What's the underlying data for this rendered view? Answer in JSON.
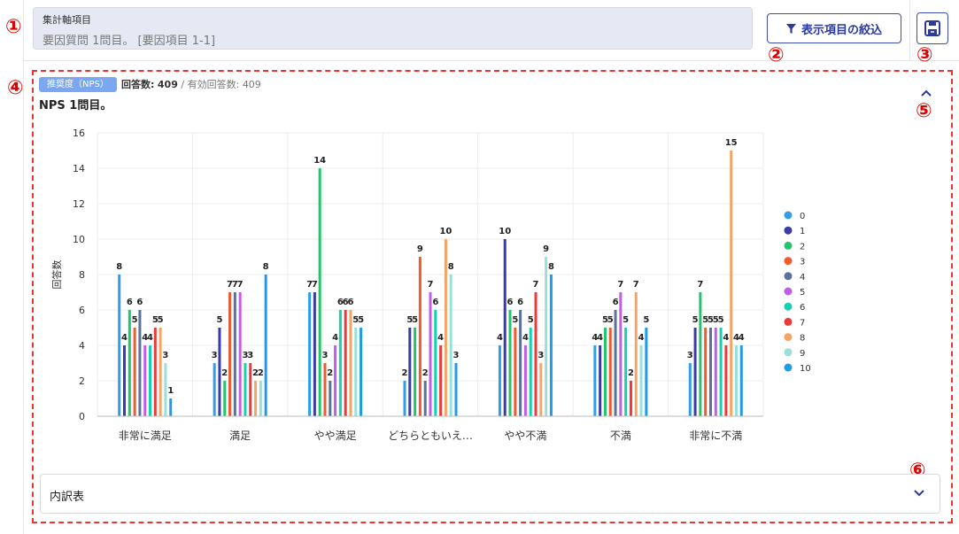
{
  "markers": [
    "①",
    "②",
    "③",
    "④",
    "⑤",
    "⑥"
  ],
  "axis_setting": {
    "label": "集計軸項目",
    "value": "要因質問 1問目。 [要因項目 1-1]"
  },
  "filter_button": {
    "label": "表示項目の絞込",
    "icon": "filter-icon"
  },
  "export_button": {
    "icon": "export-icon"
  },
  "panel": {
    "badge": "推奨度（NPS）",
    "responses_label": "回答数:",
    "responses_value": "409",
    "separator": "/",
    "valid_label": "有効回答数:",
    "valid_value": "409",
    "question_title": "NPS 1問目。"
  },
  "breakdown": {
    "label": "内訳表"
  },
  "colors": {
    "accent": "#3c4fb0",
    "marker": "#e00000",
    "dashed_border": "#e33",
    "badge": "#7aa7f0"
  },
  "chart_data": {
    "type": "bar",
    "categories": [
      "非常に満足",
      "満足",
      "やや満足",
      "どちらともいえ…",
      "やや不満",
      "不満",
      "非常に不満"
    ],
    "ylabel": "回答数",
    "ylim": [
      0,
      16
    ],
    "yticks": [
      0,
      2,
      4,
      6,
      8,
      10,
      12,
      14,
      16
    ],
    "grid": true,
    "legend_position": "right",
    "series": [
      {
        "name": "0",
        "color": "#2f9ee8",
        "values": [
          8,
          3,
          7,
          2,
          4,
          4,
          3
        ]
      },
      {
        "name": "1",
        "color": "#3a3aa8",
        "values": [
          4,
          5,
          7,
          5,
          10,
          4,
          5
        ]
      },
      {
        "name": "2",
        "color": "#23c46b",
        "values": [
          6,
          2,
          14,
          5,
          6,
          5,
          7
        ]
      },
      {
        "name": "3",
        "color": "#ef5a2f",
        "values": [
          5,
          7,
          3,
          9,
          5,
          5,
          5
        ]
      },
      {
        "name": "4",
        "color": "#5b7199",
        "values": [
          6,
          7,
          2,
          2,
          6,
          6,
          5
        ]
      },
      {
        "name": "5",
        "color": "#c25de6",
        "values": [
          4,
          7,
          4,
          7,
          4,
          7,
          5
        ]
      },
      {
        "name": "6",
        "color": "#18cfb0",
        "values": [
          4,
          3,
          6,
          6,
          5,
          5,
          5
        ]
      },
      {
        "name": "7",
        "color": "#ea3b3b",
        "values": [
          5,
          3,
          6,
          4,
          7,
          2,
          4
        ]
      },
      {
        "name": "8",
        "color": "#f5a463",
        "values": [
          5,
          2,
          6,
          10,
          3,
          7,
          15
        ]
      },
      {
        "name": "9",
        "color": "#99e0d8",
        "values": [
          3,
          2,
          5,
          8,
          9,
          4,
          4
        ]
      },
      {
        "name": "10",
        "color": "#1f9be8",
        "values": [
          1,
          8,
          5,
          3,
          8,
          5,
          4
        ]
      }
    ]
  }
}
